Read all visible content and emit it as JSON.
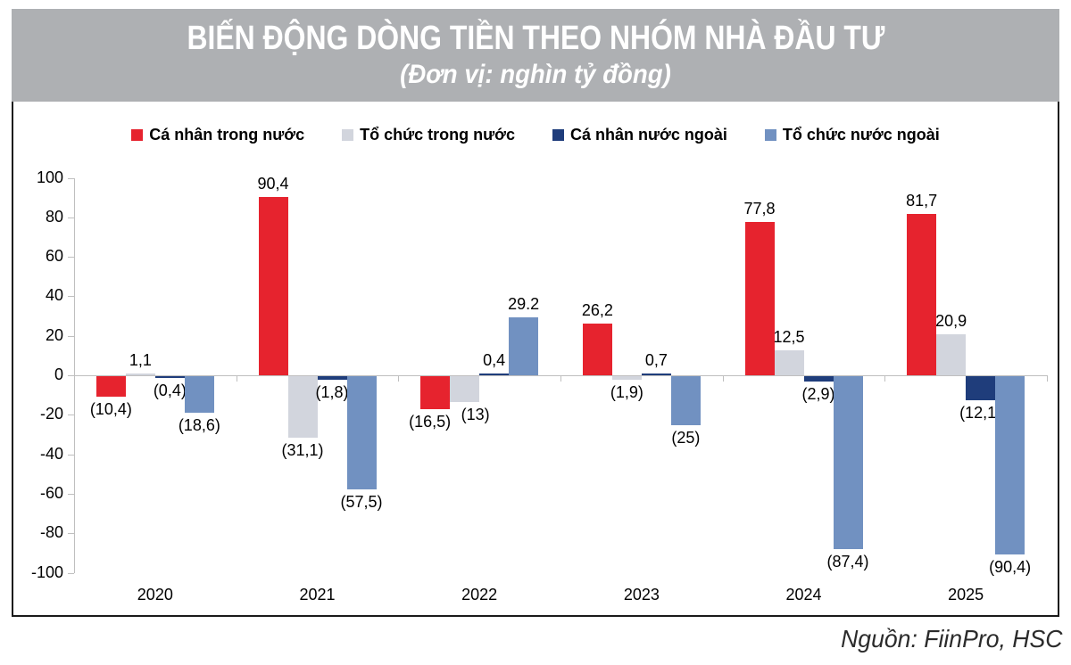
{
  "header": {
    "title": "BIẾN ĐỘNG DÒNG TIỀN THEO NHÓM NHÀ ĐẦU TƯ",
    "subtitle": "(Đơn vị: nghìn tỷ đồng)"
  },
  "source": "Nguồn: FiinPro, HSC",
  "chart_data": {
    "type": "bar",
    "title": "BIẾN ĐỘNG DÒNG TIỀN THEO NHÓM NHÀ ĐẦU TƯ",
    "subtitle_unit": "(Đơn vị: nghìn tỷ đồng)",
    "categories": [
      "2020",
      "2021",
      "2022",
      "2023",
      "2024",
      "2025"
    ],
    "series": [
      {
        "name": "Cá nhân trong nước",
        "color": "#E6232E",
        "values": [
          -10.4,
          90.4,
          -16.5,
          26.2,
          77.8,
          81.7
        ],
        "labels": [
          "(10,4)",
          "90,4",
          "(16,5)",
          "26,2",
          "77,8",
          "81,7"
        ],
        "label_dx": [
          0,
          0,
          -6,
          0,
          0,
          0
        ]
      },
      {
        "name": "Tổ chức trong nước",
        "color": "#D2D5DD",
        "values": [
          1.1,
          -31.1,
          -13,
          -1.9,
          12.5,
          20.9
        ],
        "labels": [
          "1,1",
          "(31,1)",
          "(13)",
          "(1,9)",
          "12,5",
          "20,9"
        ],
        "label_dx": [
          0,
          0,
          12,
          0,
          0,
          0
        ]
      },
      {
        "name": "Cá nhân nước ngoài",
        "color": "#1F3D7B",
        "values": [
          -0.4,
          -1.8,
          0.4,
          0.7,
          -2.9,
          -12.1
        ],
        "labels": [
          "(0,4)",
          "(1,8)",
          "0,4",
          "0,7",
          "(2,9)",
          "(12,1)"
        ],
        "label_dx": [
          0,
          0,
          0,
          0,
          0,
          0
        ]
      },
      {
        "name": "Tổ chức nước ngoài",
        "color": "#7191C1",
        "values": [
          -18.6,
          -57.5,
          29.2,
          -25,
          -87.4,
          -90.4
        ],
        "labels": [
          "(18,6)",
          "(57,5)",
          "29.2",
          "(25)",
          "(87,4)",
          "(90,4)"
        ],
        "label_dx": [
          0,
          0,
          0,
          0,
          0,
          0
        ]
      }
    ],
    "ylim": [
      -100,
      100
    ],
    "ytick_step": 20,
    "grid": false,
    "legend_position": "top",
    "axis_color": "#BFBFBF"
  }
}
